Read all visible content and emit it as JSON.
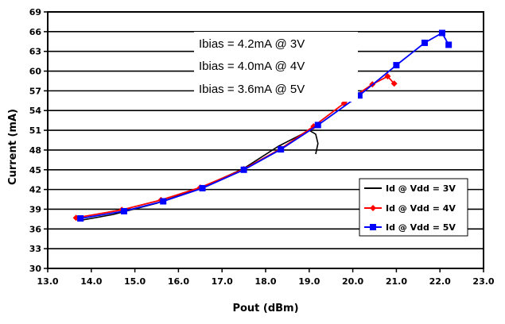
{
  "chart_data": {
    "type": "line",
    "xlabel": "Pout (dBm)",
    "ylabel": "Current (mA)",
    "xlim": [
      13.0,
      23.0
    ],
    "ylim": [
      30,
      69
    ],
    "x_ticks": [
      "13.0",
      "14.0",
      "15.0",
      "16.0",
      "17.0",
      "18.0",
      "19.0",
      "20.0",
      "21.0",
      "22.0",
      "23.0"
    ],
    "y_ticks": [
      "30",
      "33",
      "36",
      "39",
      "42",
      "45",
      "48",
      "51",
      "54",
      "57",
      "60",
      "63",
      "66",
      "69"
    ],
    "grid": "horizontal",
    "annotations": [
      "Ibias = 4.2mA @ 3V",
      "Ibias = 4.0mA @ 4V",
      "Ibias = 3.6mA @ 5V"
    ],
    "legend_position": "bottom-right",
    "series": [
      {
        "name": "Id @ Vdd = 3V",
        "color": "#000000",
        "marker": "none",
        "points": [
          [
            13.75,
            37.3
          ],
          [
            14.5,
            38.2
          ],
          [
            15.5,
            39.9
          ],
          [
            16.5,
            42.2
          ],
          [
            17.5,
            45.2
          ],
          [
            18.3,
            48.6
          ],
          [
            18.8,
            50.3
          ],
          [
            19.0,
            51.0
          ],
          [
            19.15,
            50.4
          ],
          [
            19.2,
            49.0
          ],
          [
            19.15,
            47.4
          ]
        ]
      },
      {
        "name": "Id @ Vdd = 4V",
        "color": "#ff0000",
        "marker": "diamond",
        "points": [
          [
            13.65,
            37.7
          ],
          [
            14.7,
            38.9
          ],
          [
            15.6,
            40.4
          ],
          [
            16.5,
            42.3
          ],
          [
            17.5,
            45.1
          ],
          [
            18.35,
            48.2
          ],
          [
            19.1,
            51.6
          ],
          [
            19.8,
            55.1
          ],
          [
            20.45,
            58.0
          ],
          [
            20.8,
            59.2
          ],
          [
            20.95,
            58.1
          ]
        ]
      },
      {
        "name": "Id @ Vdd = 5V",
        "color": "#0000ff",
        "marker": "square",
        "points": [
          [
            13.75,
            37.6
          ],
          [
            14.75,
            38.7
          ],
          [
            15.65,
            40.2
          ],
          [
            16.55,
            42.2
          ],
          [
            17.5,
            45.0
          ],
          [
            18.35,
            48.1
          ],
          [
            19.2,
            51.8
          ],
          [
            20.15,
            56.3
          ],
          [
            21.0,
            60.9
          ],
          [
            21.65,
            64.3
          ],
          [
            22.05,
            65.8
          ],
          [
            22.2,
            64.0
          ]
        ]
      }
    ]
  }
}
